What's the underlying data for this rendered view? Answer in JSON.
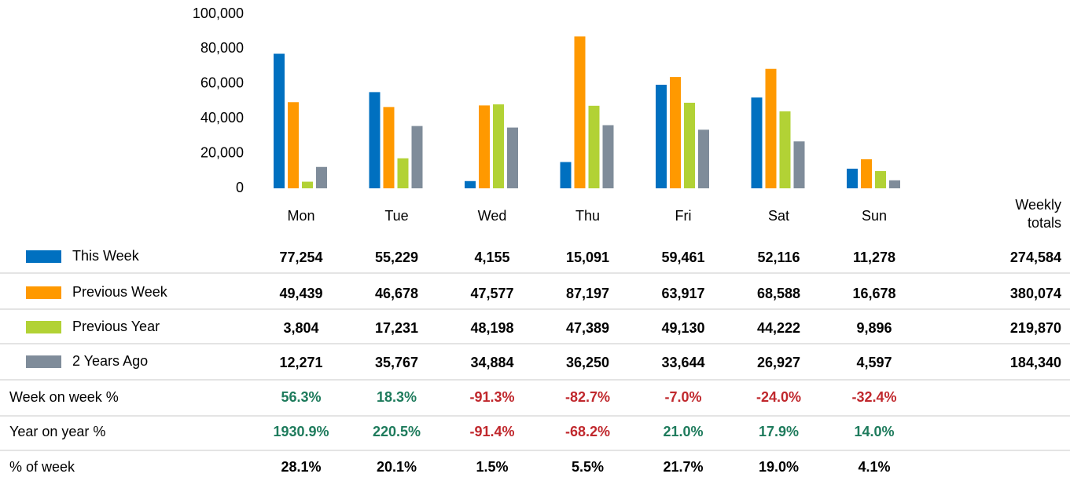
{
  "chart_data": {
    "type": "bar",
    "categories": [
      "Mon",
      "Tue",
      "Wed",
      "Thu",
      "Fri",
      "Sat",
      "Sun"
    ],
    "ylim": [
      0,
      100000
    ],
    "yticks": [
      {
        "value": 0,
        "label": "0"
      },
      {
        "value": 20000,
        "label": "20,000"
      },
      {
        "value": 40000,
        "label": "40,000"
      },
      {
        "value": 60000,
        "label": "60,000"
      },
      {
        "value": 80000,
        "label": "80,000"
      },
      {
        "value": 100000,
        "label": "100,000"
      }
    ],
    "series": [
      {
        "name": "This Week",
        "color": "#0070c0",
        "values": [
          77254,
          55229,
          4155,
          15091,
          59461,
          52116,
          11278
        ],
        "value_labels": [
          "77,254",
          "55,229",
          "4,155",
          "15,091",
          "59,461",
          "52,116",
          "11,278"
        ]
      },
      {
        "name": "Previous Week",
        "color": "#ff9900",
        "values": [
          49439,
          46678,
          47577,
          87197,
          63917,
          68588,
          16678
        ],
        "value_labels": [
          "49,439",
          "46,678",
          "47,577",
          "87,197",
          "63,917",
          "68,588",
          "16,678"
        ]
      },
      {
        "name": "Previous Year",
        "color": "#b2d235",
        "values": [
          3804,
          17231,
          48198,
          47389,
          49130,
          44222,
          9896
        ],
        "value_labels": [
          "3,804",
          "17,231",
          "48,198",
          "47,389",
          "49,130",
          "44,222",
          "9,896"
        ]
      },
      {
        "name": "2 Years Ago",
        "color": "#7f8c9a",
        "values": [
          12271,
          35767,
          34884,
          36250,
          33644,
          26927,
          4597
        ],
        "value_labels": [
          "12,271",
          "35,767",
          "34,884",
          "36,250",
          "33,644",
          "26,927",
          "4,597"
        ]
      }
    ],
    "totals_header": "Weekly totals",
    "totals": [
      "274,584",
      "380,074",
      "219,870",
      "184,340"
    ],
    "metrics": [
      {
        "label": "Week on week %",
        "values": [
          "56.3%",
          "18.3%",
          "-91.3%",
          "-82.7%",
          "-7.0%",
          "-24.0%",
          "-32.4%"
        ]
      },
      {
        "label": "Year on year %",
        "values": [
          "1930.9%",
          "220.5%",
          "-91.4%",
          "-68.2%",
          "21.0%",
          "17.9%",
          "14.0%"
        ]
      },
      {
        "label": "% of week",
        "values": [
          "28.1%",
          "20.1%",
          "1.5%",
          "5.5%",
          "21.7%",
          "19.0%",
          "4.1%"
        ]
      }
    ]
  }
}
